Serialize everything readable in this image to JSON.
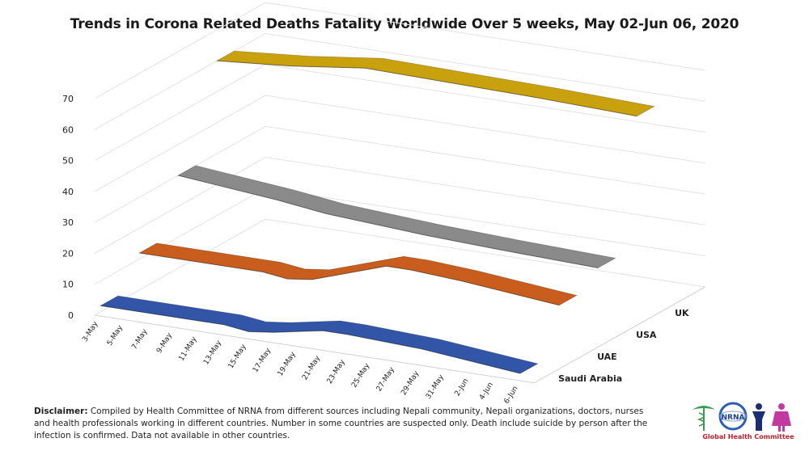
{
  "chart_data": {
    "type": "line",
    "title": "Trends in Corona Related Deaths Fatality Worldwide Over 5 weeks, May 02-Jun 06, 2020",
    "categories": [
      "3-May",
      "5-May",
      "7-May",
      "9-May",
      "11-May",
      "13-May",
      "15-May",
      "17-May",
      "19-May",
      "21-May",
      "23-May",
      "25-May",
      "27-May",
      "29-May",
      "31-May",
      "2-Jun",
      "4-Jun",
      "6-Jun"
    ],
    "y_ticks": [
      "0",
      "10",
      "20",
      "30",
      "40",
      "50",
      "60",
      "70"
    ],
    "ylim": [
      0,
      70
    ],
    "grid": true,
    "series": [
      {
        "name": "Saudi Arabia",
        "color": "#3355a8",
        "x": [
          "3-May",
          "13-May",
          "15-May",
          "17-May",
          "21-May",
          "23-May",
          "29-May",
          "6-Jun"
        ],
        "values": [
          2,
          2,
          1,
          2,
          5,
          5,
          4,
          1
        ]
      },
      {
        "name": "UAE",
        "color": "#c85d1e",
        "x": [
          "3-May",
          "13-May",
          "15-May",
          "17-May",
          "23-May",
          "25-May",
          "29-May",
          "6-Jun"
        ],
        "values": [
          12,
          12,
          11,
          12,
          20,
          20,
          19,
          16
        ]
      },
      {
        "name": "USA",
        "color": "#8a8a8a",
        "x": [
          "3-May",
          "11-May",
          "15-May",
          "23-May",
          "29-May",
          "6-Jun"
        ],
        "values": [
          30,
          27,
          25,
          23,
          22,
          21
        ]
      },
      {
        "name": "UK",
        "color": "#c9a10c",
        "x": [
          "3-May",
          "9-May",
          "11-May",
          "15-May",
          "29-May",
          "6-Jun"
        ],
        "values": [
          60,
          62,
          63,
          65,
          64,
          63
        ]
      }
    ]
  },
  "disclaimer": {
    "label": "Disclaimer:",
    "text": " Compiled by Health Committee of NRNA from different sources including Nepali community,  Nepali organizations, doctors, nurses and health professionals working in different countries. Number  in some countries are suspected only. Death include suicide by person  after the infection is confirmed.  Data not available in other countries."
  },
  "logo": {
    "abbreviation": "NRNA",
    "caption": "Global Health Committee"
  }
}
